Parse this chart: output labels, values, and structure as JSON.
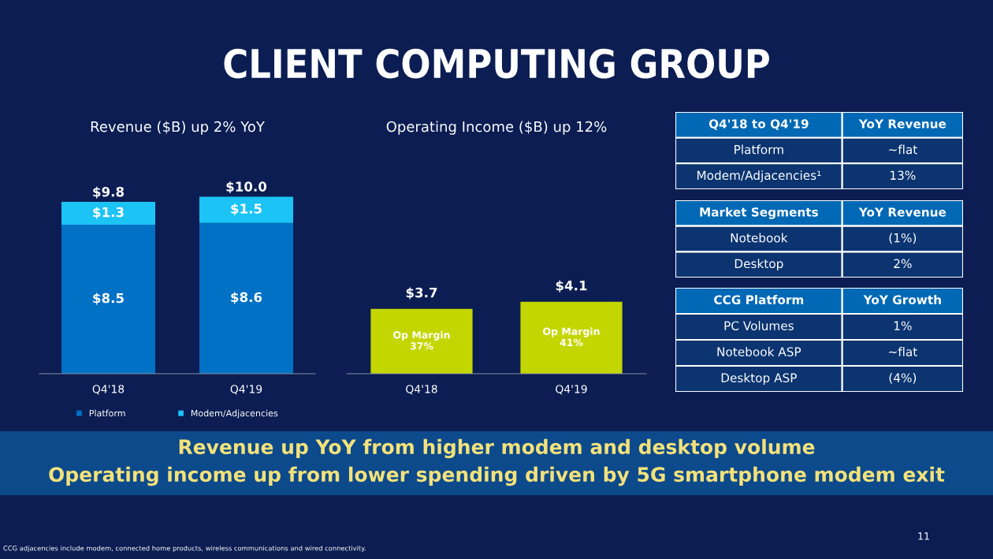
{
  "chart_data": [
    {
      "type": "other",
      "title": "CLIENT COMPUTING GROUP",
      "annotations": [
        "Revenue up YoY from higher modem and desktop volume",
        "Operating income up from lower spending driven by 5G smartphone modem exit",
        "CCG adjacencies include modem, connected home products, wireless communications and wired connectivity.",
        "11"
      ]
    },
    {
      "type": "bar",
      "title": "Revenue ($B) up 2% YoY",
      "categories": [
        "Q4'18",
        "Q4'19"
      ],
      "stacked": true,
      "legend": "bottom",
      "series": [
        {
          "name": "Platform",
          "color": "#0071c5",
          "values": [
            8.5,
            8.6
          ],
          "value_labels": [
            "$8.5",
            "$8.6"
          ]
        },
        {
          "name": "Modem/Adjacencies",
          "color": "#1cc3f5",
          "values": [
            1.3,
            1.5
          ],
          "value_labels": [
            "$1.3",
            "$1.5"
          ]
        }
      ],
      "totals": [
        "$9.8",
        "$10.0"
      ]
    },
    {
      "type": "bar",
      "title": "Operating Income ($B) up 12%",
      "categories": [
        "Q4'18",
        "Q4'19"
      ],
      "series": [
        {
          "color": "#c4d600",
          "values": [
            3.7,
            4.1
          ],
          "value_labels": [
            "$3.7",
            "$4.1"
          ]
        }
      ],
      "annotations": [
        "Op Margin\n37%",
        "Op Margin\n41%"
      ]
    },
    {
      "type": "other",
      "categories": [
        "Q4'18 to Q4'19",
        "YoY Revenue"
      ],
      "annotations": [
        "Platform",
        "~flat",
        "Modem/Adjacencies¹",
        "13%"
      ]
    },
    {
      "type": "other",
      "categories": [
        "Market Segments",
        "YoY Revenue"
      ],
      "annotations": [
        "Notebook",
        "(1%)",
        "Desktop",
        "2%"
      ]
    },
    {
      "type": "other",
      "categories": [
        "CCG Platform",
        "YoY Growth"
      ],
      "annotations": [
        "PC Volumes",
        "1%",
        "Notebook ASP",
        "~flat",
        "Desktop ASP",
        "(4%)"
      ]
    }
  ]
}
